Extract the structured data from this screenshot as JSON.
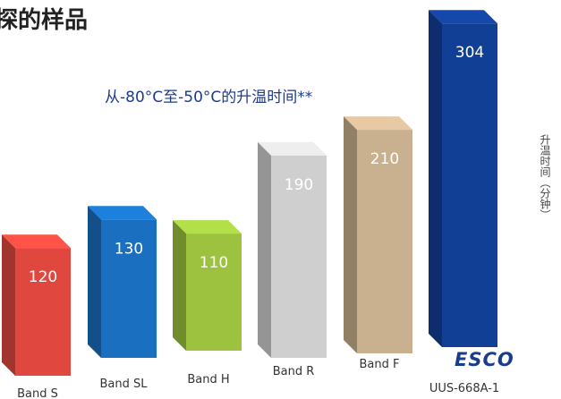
{
  "header": {
    "title": "探的样品"
  },
  "chart_data": {
    "type": "bar",
    "title": "从-80°C至-50°C的升温时间**",
    "ylabel": "升温时间（分钟）",
    "categories": [
      "Band S",
      "Band SL",
      "Band H",
      "Band R",
      "Band F",
      "UUS-668A-1"
    ],
    "values": [
      120,
      130,
      110,
      190,
      210,
      304
    ],
    "colors": [
      "#e0483f",
      "#1a6fc0",
      "#9cc23f",
      "#cfcfcf",
      "#c9b08e",
      "#123f96"
    ],
    "ylim": [
      0,
      304
    ],
    "grid": false,
    "legend": "none"
  },
  "brand": {
    "logo_text": "ESCO"
  }
}
